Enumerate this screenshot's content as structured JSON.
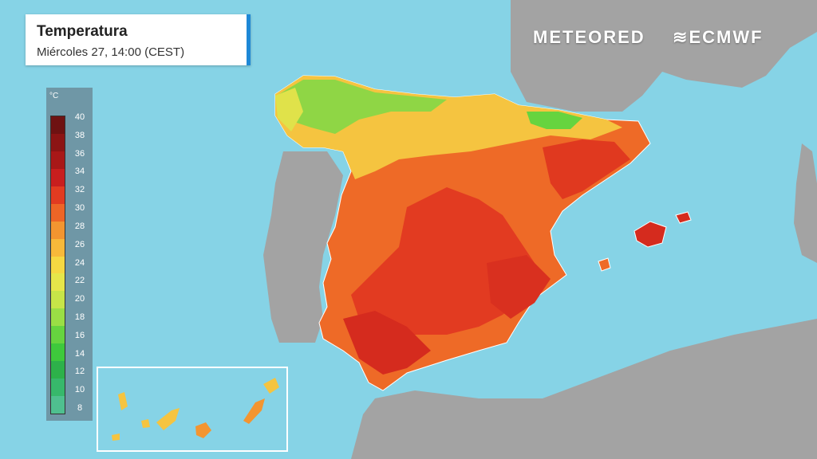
{
  "header": {
    "title": "Temperatura",
    "subtitle": "Miércoles 27, 14:00 (CEST)"
  },
  "brands": {
    "left": "METEORED",
    "right": "ECMWF"
  },
  "legend": {
    "unit": "°C",
    "ticks": [
      "40",
      "38",
      "36",
      "34",
      "32",
      "30",
      "28",
      "26",
      "24",
      "22",
      "20",
      "18",
      "16",
      "14",
      "12",
      "10",
      "8"
    ],
    "colors": [
      "#6e1212",
      "#8c1414",
      "#a81818",
      "#c81e1e",
      "#e23b21",
      "#ee6526",
      "#f39530",
      "#f7b93a",
      "#f5d842",
      "#e6e64a",
      "#c7e548",
      "#9ade45",
      "#66d43f",
      "#3ec93c",
      "#2db14a",
      "#37b86b",
      "#4fc08f"
    ]
  },
  "colors": {
    "sea": "#86d3e6",
    "land": "#a3a3a3"
  }
}
